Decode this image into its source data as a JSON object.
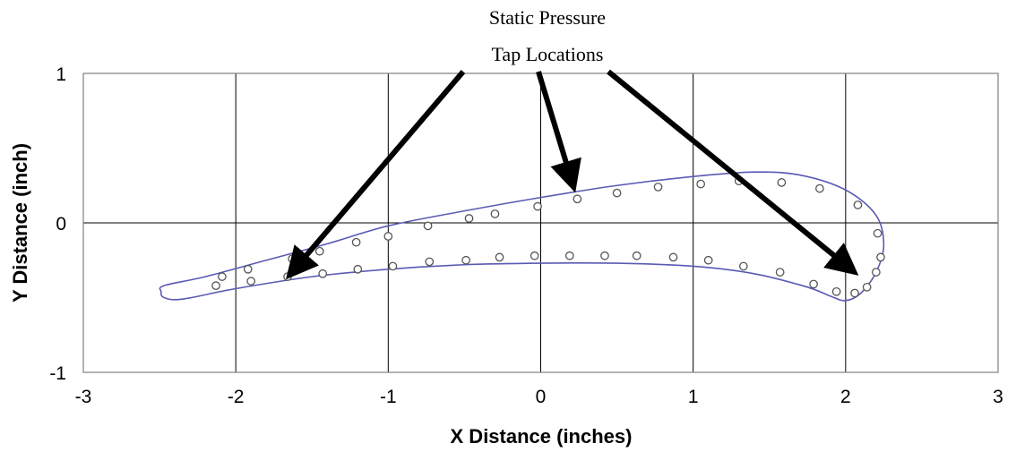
{
  "chart_data": {
    "type": "scatter",
    "xlabel": "X Distance (inches)",
    "ylabel": "Y Distance (inch)",
    "xlim": [
      -3,
      3
    ],
    "ylim": [
      -1,
      1
    ],
    "xticks": [
      "-3",
      "-2",
      "-1",
      "0",
      "1",
      "2",
      "3"
    ],
    "yticks": [
      "1",
      "0",
      "-1"
    ],
    "grid": true,
    "annotation": {
      "lines": [
        "Static Pressure",
        "Tap Locations"
      ]
    },
    "colors": {
      "profile": "#5a5ab4",
      "taps": "#555555",
      "grid": "#000000"
    },
    "profile": {
      "upper": [
        [
          -2.47,
          -0.42
        ],
        [
          -2.2,
          -0.36
        ],
        [
          -1.8,
          -0.25
        ],
        [
          -1.4,
          -0.14
        ],
        [
          -1.0,
          -0.02
        ],
        [
          -0.5,
          0.08
        ],
        [
          0.0,
          0.17
        ],
        [
          0.5,
          0.25
        ],
        [
          1.0,
          0.31
        ],
        [
          1.4,
          0.34
        ],
        [
          1.7,
          0.32
        ],
        [
          2.0,
          0.22
        ],
        [
          2.2,
          0.05
        ],
        [
          2.25,
          -0.15
        ],
        [
          2.2,
          -0.33
        ],
        [
          2.1,
          -0.47
        ],
        [
          2.0,
          -0.52
        ],
        [
          1.9,
          -0.49
        ],
        [
          1.75,
          -0.43
        ]
      ],
      "lower": [
        [
          1.75,
          -0.43
        ],
        [
          1.4,
          -0.34
        ],
        [
          1.0,
          -0.29
        ],
        [
          0.5,
          -0.27
        ],
        [
          0.0,
          -0.27
        ],
        [
          -0.5,
          -0.28
        ],
        [
          -1.0,
          -0.31
        ],
        [
          -1.5,
          -0.36
        ],
        [
          -2.0,
          -0.44
        ],
        [
          -2.35,
          -0.51
        ],
        [
          -2.47,
          -0.5
        ],
        [
          -2.49,
          -0.46
        ],
        [
          -2.47,
          -0.42
        ]
      ]
    },
    "taps": [
      [
        -2.13,
        -0.42
      ],
      [
        -2.09,
        -0.36
      ],
      [
        -1.92,
        -0.31
      ],
      [
        -1.9,
        -0.39
      ],
      [
        -1.63,
        -0.24
      ],
      [
        -1.66,
        -0.36
      ],
      [
        -1.45,
        -0.19
      ],
      [
        -1.43,
        -0.34
      ],
      [
        -1.21,
        -0.13
      ],
      [
        -1.2,
        -0.31
      ],
      [
        -1.0,
        -0.09
      ],
      [
        -0.97,
        -0.29
      ],
      [
        -0.74,
        -0.02
      ],
      [
        -0.73,
        -0.26
      ],
      [
        -0.47,
        0.03
      ],
      [
        -0.49,
        -0.25
      ],
      [
        -0.3,
        0.06
      ],
      [
        -0.27,
        -0.23
      ],
      [
        -0.02,
        0.11
      ],
      [
        -0.04,
        -0.22
      ],
      [
        0.24,
        0.16
      ],
      [
        0.19,
        -0.22
      ],
      [
        0.5,
        0.2
      ],
      [
        0.42,
        -0.22
      ],
      [
        0.77,
        0.24
      ],
      [
        0.63,
        -0.22
      ],
      [
        1.05,
        0.26
      ],
      [
        0.87,
        -0.23
      ],
      [
        1.3,
        0.28
      ],
      [
        1.1,
        -0.25
      ],
      [
        1.58,
        0.27
      ],
      [
        1.33,
        -0.29
      ],
      [
        1.83,
        0.23
      ],
      [
        1.57,
        -0.33
      ],
      [
        2.08,
        0.12
      ],
      [
        1.79,
        -0.41
      ],
      [
        2.21,
        -0.07
      ],
      [
        1.94,
        -0.46
      ],
      [
        2.23,
        -0.23
      ],
      [
        2.06,
        -0.47
      ],
      [
        2.2,
        -0.33
      ],
      [
        2.14,
        -0.43
      ]
    ]
  }
}
